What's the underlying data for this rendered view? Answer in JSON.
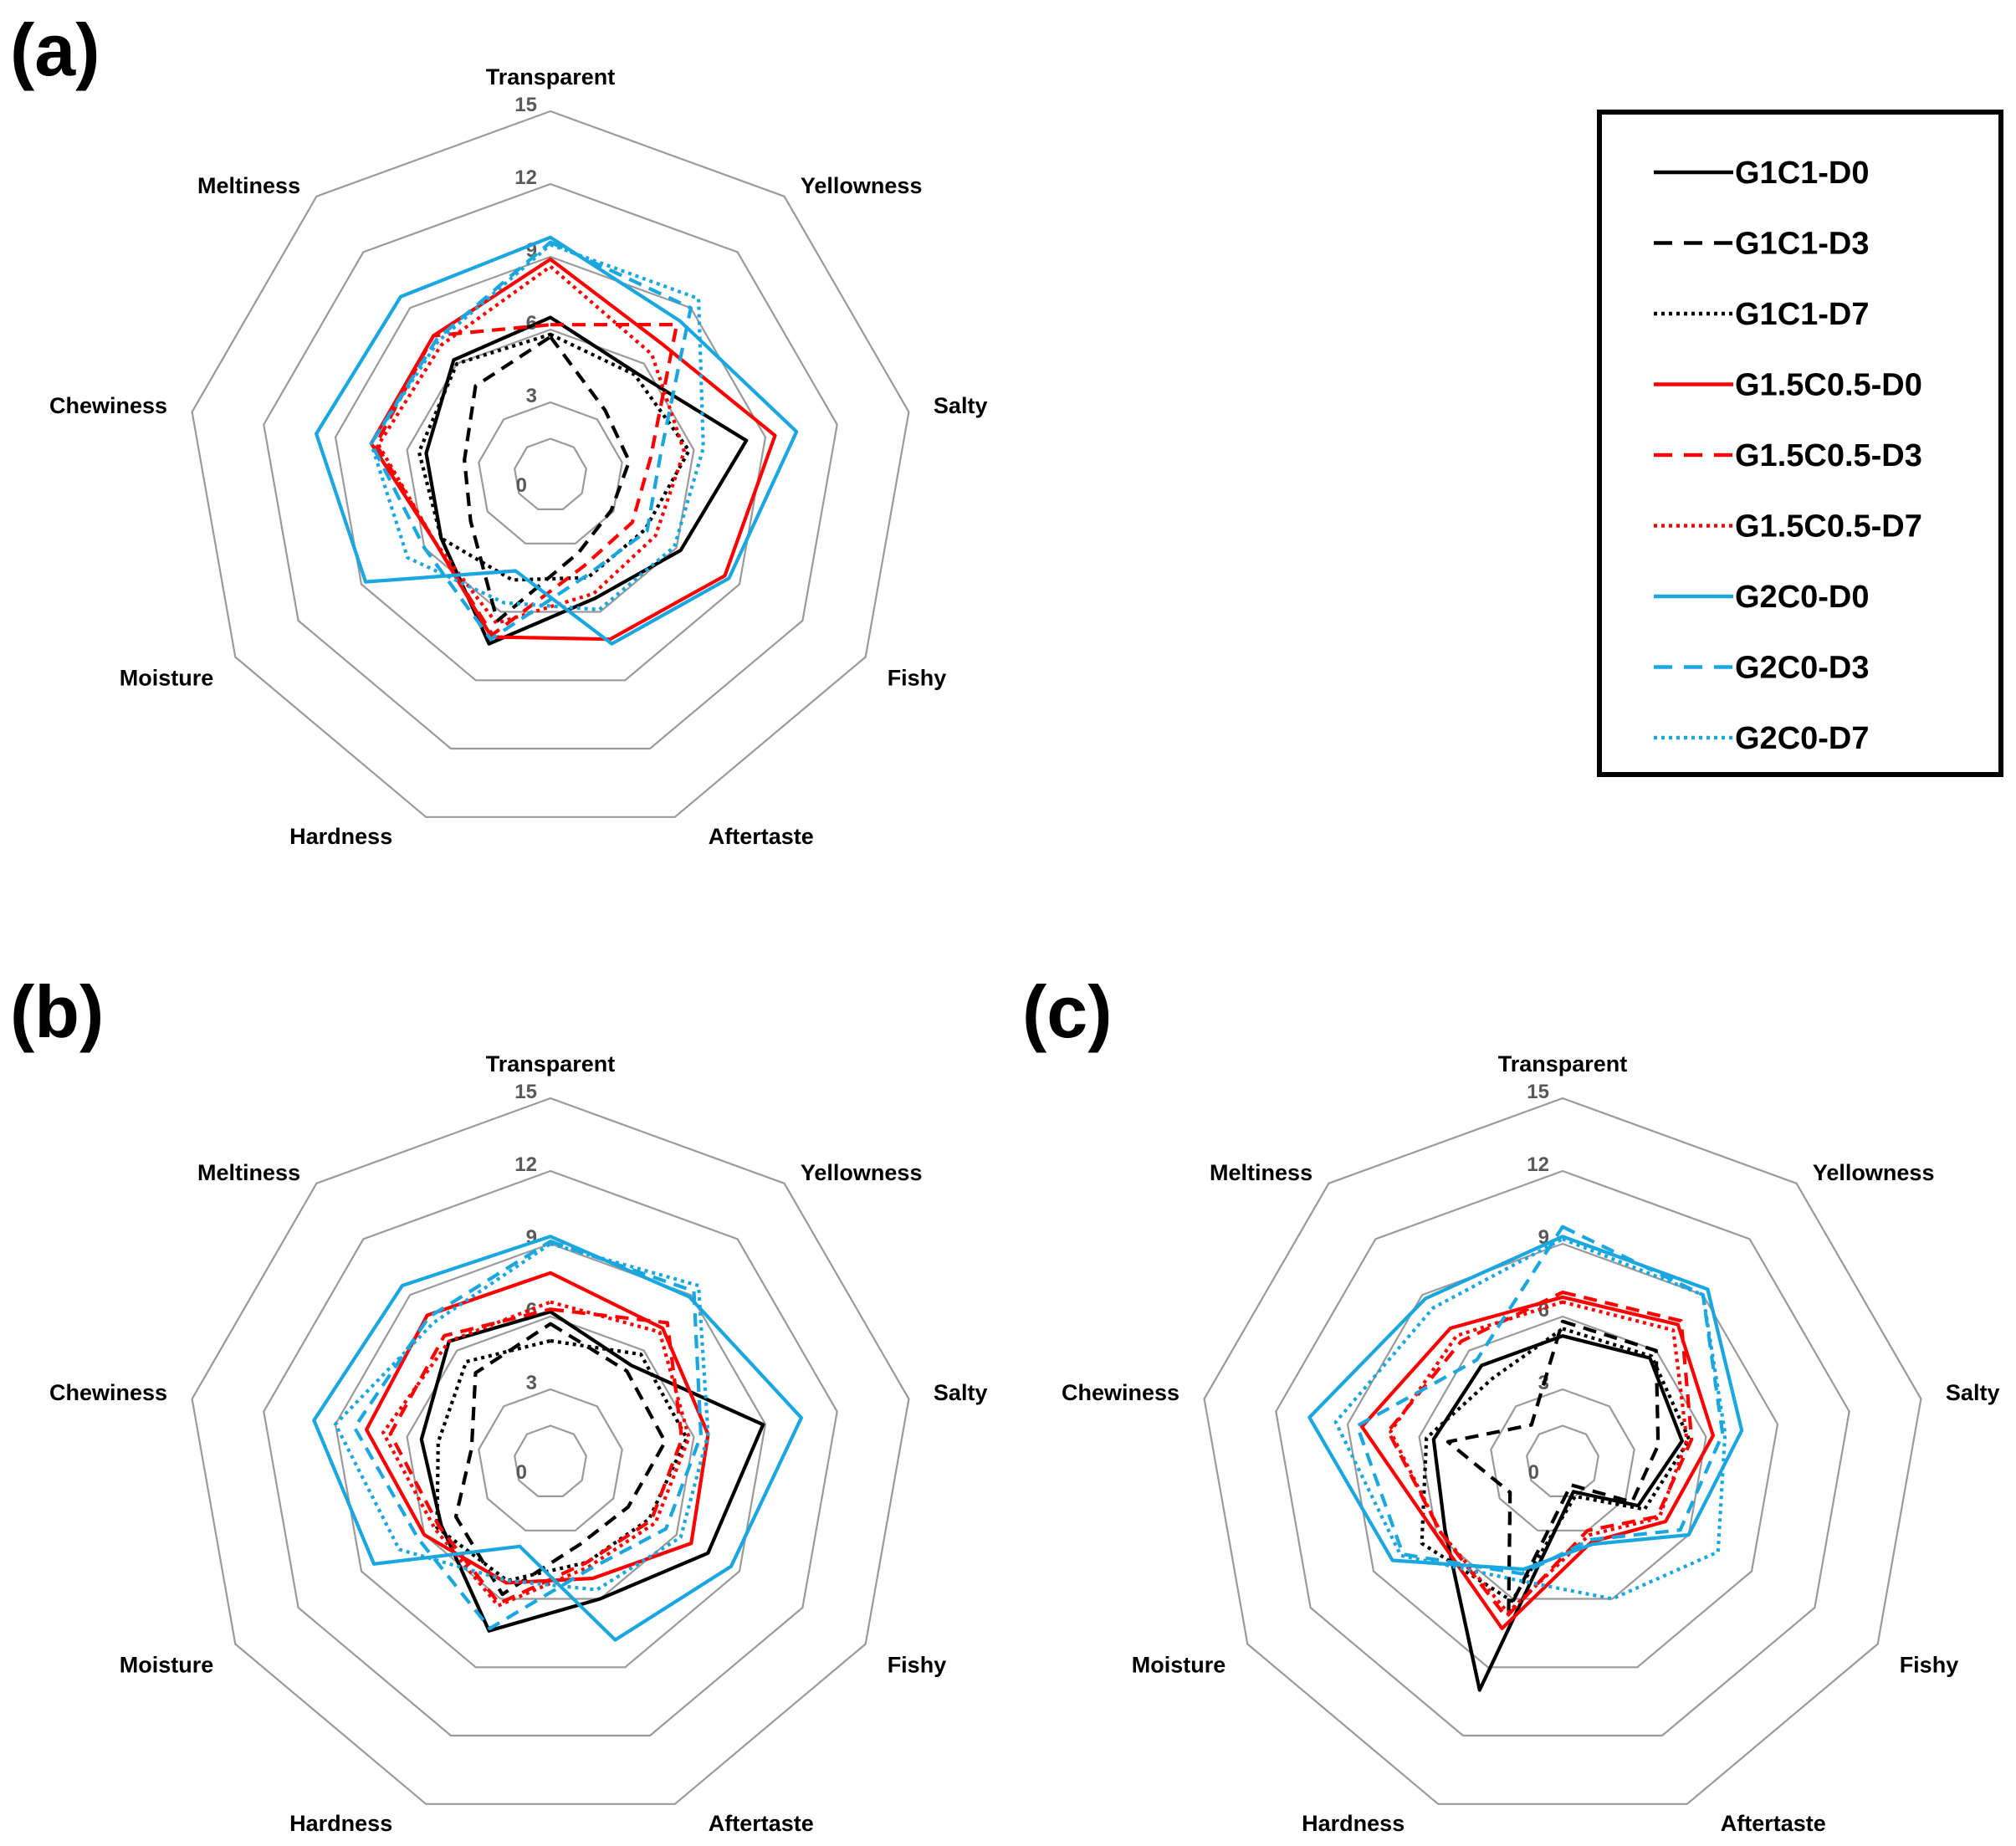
{
  "chart_data": [
    {
      "panel": "(a)",
      "type": "radar",
      "axes": [
        "Transparent",
        "Yellowness",
        "Salty",
        "Fishy",
        "Aftertaste",
        "Hardness",
        "Moisture",
        "Chewiness",
        "Meltiness"
      ],
      "ticks": [
        0,
        3,
        6,
        9,
        12,
        15
      ],
      "ylim": [
        0,
        15
      ],
      "series": [
        {
          "name": "G1C1-D0",
          "values": [
            6.5,
            5.5,
            8.2,
            6.2,
            5.4,
            7.4,
            5.2,
            5.2,
            6.2
          ]
        },
        {
          "name": "G1C1-D3",
          "values": [
            5.7,
            3.5,
            3.3,
            2.9,
            3.4,
            6.4,
            3.8,
            3.6,
            4.8
          ]
        },
        {
          "name": "G1C1-D7",
          "values": [
            5.8,
            5.4,
            5.8,
            4.5,
            4.5,
            4.6,
            5.2,
            5.5,
            6.0
          ]
        },
        {
          "name": "G1.5C0.5-D0",
          "values": [
            8.9,
            7.1,
            9.4,
            8.3,
            7.2,
            7.1,
            5.5,
            7.5,
            7.5
          ]
        },
        {
          "name": "G1.5C0.5-D3",
          "values": [
            6.2,
            8.1,
            4.2,
            3.9,
            4.0,
            7.0,
            5.5,
            7.3,
            7.5
          ]
        },
        {
          "name": "G1.5C0.5-D7",
          "values": [
            8.6,
            6.5,
            5.6,
            5.0,
            5.2,
            6.5,
            5.5,
            7.2,
            7.0
          ]
        },
        {
          "name": "G2C0-D0",
          "values": [
            9.8,
            8.3,
            10.3,
            8.5,
            7.4,
            4.2,
            8.8,
            9.8,
            9.6
          ]
        },
        {
          "name": "G2C0-D3",
          "values": [
            9.6,
            9.0,
            4.6,
            4.6,
            4.4,
            7.2,
            6.0,
            7.5,
            7.3
          ]
        },
        {
          "name": "G2C0-D7",
          "values": [
            9.5,
            9.5,
            6.4,
            5.9,
            5.9,
            5.6,
            6.8,
            7.5,
            7.2
          ]
        }
      ]
    },
    {
      "panel": "(b)",
      "type": "radar",
      "axes": [
        "Transparent",
        "Yellowness",
        "Salty",
        "Fishy",
        "Aftertaste",
        "Hardness",
        "Moisture",
        "Chewiness",
        "Meltiness"
      ],
      "ticks": [
        0,
        3,
        6,
        9,
        12,
        15
      ],
      "ylim": [
        0,
        15
      ],
      "series": [
        {
          "name": "G1C1-D0",
          "values": [
            6.2,
            5.2,
            8.9,
            7.5,
            6.0,
            7.4,
            5.2,
            5.4,
            6.5
          ]
        },
        {
          "name": "G1C1-D3",
          "values": [
            5.7,
            4.9,
            4.8,
            3.7,
            3.6,
            5.8,
            4.5,
            3.3,
            4.8
          ]
        },
        {
          "name": "G1C1-D7",
          "values": [
            5.0,
            5.8,
            5.7,
            4.7,
            4.4,
            5.2,
            5.4,
            4.7,
            5.4
          ]
        },
        {
          "name": "G1.5C0.5-D0",
          "values": [
            7.8,
            7.2,
            6.6,
            6.7,
            5.1,
            5.3,
            6.0,
            7.7,
            7.9
          ]
        },
        {
          "name": "G1.5C0.5-D3",
          "values": [
            6.3,
            7.5,
            5.5,
            4.8,
            4.4,
            6.2,
            5.3,
            6.7,
            6.8
          ]
        },
        {
          "name": "G1.5C0.5-D7",
          "values": [
            6.6,
            7.0,
            5.8,
            5.0,
            4.6,
            6.3,
            5.5,
            7.0,
            6.5
          ]
        },
        {
          "name": "G2C0-D0",
          "values": [
            9.3,
            8.9,
            10.5,
            8.6,
            7.8,
            3.7,
            8.4,
            9.9,
            9.5
          ]
        },
        {
          "name": "G2C0-D3",
          "values": [
            9.1,
            9.2,
            6.3,
            5.5,
            4.7,
            7.3,
            6.3,
            8.2,
            7.8
          ]
        },
        {
          "name": "G2C0-D7",
          "values": [
            9.0,
            9.5,
            6.6,
            6.2,
            5.6,
            5.2,
            7.2,
            9.0,
            7.5
          ]
        }
      ]
    },
    {
      "panel": "(c)",
      "type": "radar",
      "axes": [
        "Transparent",
        "Yellowness",
        "Salty",
        "Fishy",
        "Aftertaste",
        "Hardness",
        "Moisture",
        "Chewiness",
        "Meltiness"
      ],
      "ticks": [
        0,
        3,
        6,
        9,
        12,
        15
      ],
      "ylim": [
        0,
        15
      ],
      "series": [
        {
          "name": "G1C1-D0",
          "values": [
            5.2,
            5.6,
            5.0,
            3.6,
            1.3,
            10.0,
            5.6,
            5.4,
            5.2
          ]
        },
        {
          "name": "G1C1-D3",
          "values": [
            5.8,
            6.0,
            4.0,
            3.3,
            1.0,
            6.5,
            2.5,
            4.8,
            2.0
          ]
        },
        {
          "name": "G1C1-D7",
          "values": [
            5.5,
            5.7,
            5.3,
            3.9,
            1.5,
            6.1,
            6.7,
            5.7,
            4.5
          ]
        },
        {
          "name": "G1.5C0.5-D0",
          "values": [
            6.8,
            7.4,
            6.3,
            4.9,
            3.5,
            7.3,
            6.0,
            8.4,
            7.2
          ]
        },
        {
          "name": "G1.5C0.5-D3",
          "values": [
            7.0,
            7.6,
            5.4,
            4.5,
            3.0,
            6.8,
            5.8,
            7.3,
            6.5
          ]
        },
        {
          "name": "G1.5C0.5-D7",
          "values": [
            6.6,
            7.1,
            5.2,
            4.6,
            3.2,
            6.6,
            5.8,
            7.2,
            6.8
          ]
        },
        {
          "name": "G2C0-D0",
          "values": [
            9.3,
            9.3,
            7.5,
            6.0,
            3.6,
            4.7,
            8.1,
            10.6,
            8.8
          ]
        },
        {
          "name": "G2C0-D3",
          "values": [
            9.7,
            9.0,
            6.7,
            5.6,
            3.4,
            4.9,
            7.6,
            8.6,
            5.5
          ]
        },
        {
          "name": "G2C0-D7",
          "values": [
            9.2,
            9.0,
            6.8,
            7.4,
            6.0,
            5.2,
            7.7,
            9.5,
            8.3
          ]
        }
      ]
    }
  ],
  "legend": {
    "entries": [
      {
        "name": "G1C1-D0",
        "color": "#000000",
        "dash": "solid"
      },
      {
        "name": "G1C1-D3",
        "color": "#000000",
        "dash": "dashed"
      },
      {
        "name": "G1C1-D7",
        "color": "#000000",
        "dash": "dotted"
      },
      {
        "name": "G1.5C0.5-D0",
        "color": "#ff0000",
        "dash": "solid"
      },
      {
        "name": "G1.5C0.5-D3",
        "color": "#ff0000",
        "dash": "dashed"
      },
      {
        "name": "G1.5C0.5-D7",
        "color": "#ff0000",
        "dash": "dotted"
      },
      {
        "name": "G2C0-D0",
        "color": "#1aa7e0",
        "dash": "solid"
      },
      {
        "name": "G2C0-D3",
        "color": "#1aa7e0",
        "dash": "dashed"
      },
      {
        "name": "G2C0-D7",
        "color": "#1aa7e0",
        "dash": "dotted"
      }
    ],
    "placement": "top-right"
  },
  "colors": {
    "black": "#000000",
    "red": "#ff0000",
    "blue": "#1aa7e0",
    "grid": "#9a9a9a",
    "tick": "#595959"
  }
}
